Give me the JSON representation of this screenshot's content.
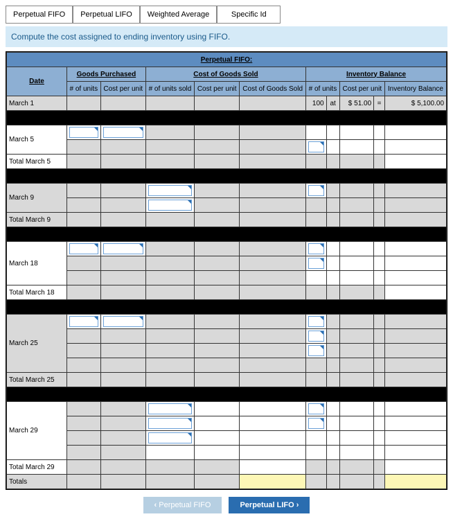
{
  "tabs": {
    "t1": "Perpetual FIFO",
    "t2": "Perpetual LIFO",
    "t3": "Weighted Average",
    "t4": "Specific Id"
  },
  "instruction": "Compute the cost assigned to ending inventory using FIFO.",
  "table": {
    "title": "Perpetual FIFO:",
    "groups": {
      "date": "Date",
      "goods": "Goods Purchased",
      "cogs": "Cost of Goods Sold",
      "inv": "Inventory Balance"
    },
    "cols": {
      "gp_units": "# of units",
      "gp_cost": "Cost per unit",
      "cogs_units": "# of units sold",
      "cogs_cost": "Cost per unit",
      "cogs_total": "Cost of Goods Sold",
      "inv_units": "# of units",
      "inv_cost": "Cost per unit",
      "inv_bal": "Inventory Balance"
    },
    "rows": {
      "march1": "March 1",
      "march5": "March 5",
      "tmarch5": "Total March 5",
      "march9": "March 9",
      "tmarch9": "Total March 9",
      "march18": "March 18",
      "tmarch18": "Total March 18",
      "march25": "March 25",
      "tmarch25": "Total March 25",
      "march29": "March 29",
      "tmarch29": "Total March 29",
      "totals": "Totals"
    },
    "march1_data": {
      "units": "100",
      "at": "at",
      "cost": "$ 51.00",
      "eq": "=",
      "bal": "$  5,100.00"
    }
  },
  "footer": {
    "prev": "Perpetual FIFO",
    "next": "Perpetual LIFO"
  }
}
